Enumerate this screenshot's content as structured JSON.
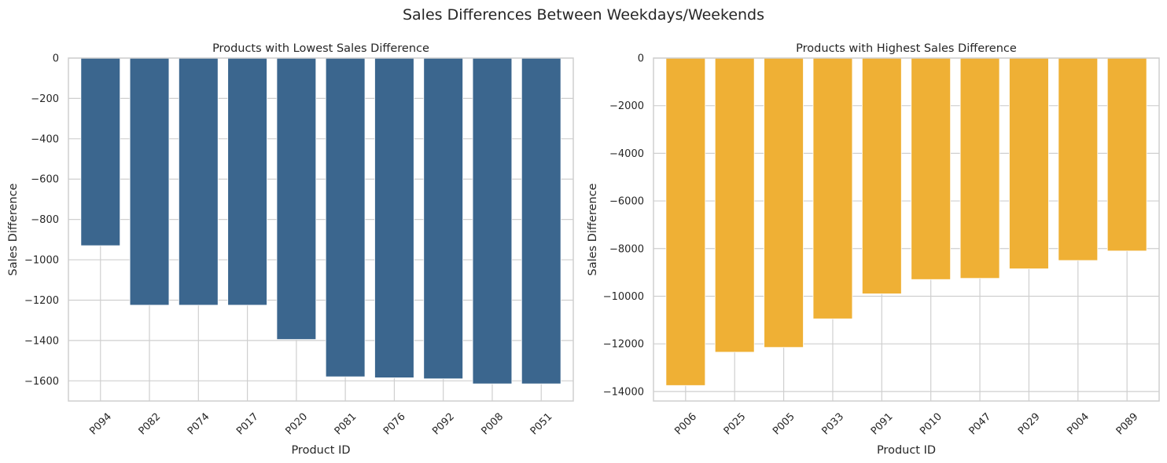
{
  "figure": {
    "title": "Sales Differences Between Weekdays/Weekends"
  },
  "chart_data": [
    {
      "type": "bar",
      "title": "Products with Lowest Sales Difference",
      "xlabel": "Product ID",
      "ylabel": "Sales Difference",
      "color": "#3b668e",
      "categories": [
        "P094",
        "P082",
        "P074",
        "P017",
        "P020",
        "P081",
        "P076",
        "P092",
        "P008",
        "P051"
      ],
      "values": [
        -930,
        -1225,
        -1225,
        -1225,
        -1395,
        -1580,
        -1585,
        -1590,
        -1615,
        -1615
      ],
      "ylim": [
        -1700,
        0
      ],
      "yticks": [
        0,
        -200,
        -400,
        -600,
        -800,
        -1000,
        -1200,
        -1400,
        -1600
      ],
      "ytick_labels": [
        "0",
        "−200",
        "−400",
        "−600",
        "−800",
        "−1000",
        "−1200",
        "−1400",
        "−1600"
      ],
      "grid": true
    },
    {
      "type": "bar",
      "title": "Products with Highest Sales Difference",
      "xlabel": "Product ID",
      "ylabel": "Sales Difference",
      "color": "#efb035",
      "categories": [
        "P006",
        "P025",
        "P005",
        "P033",
        "P091",
        "P010",
        "P047",
        "P029",
        "P004",
        "P089"
      ],
      "values": [
        -13750,
        -12350,
        -12150,
        -10950,
        -9900,
        -9300,
        -9250,
        -8850,
        -8500,
        -8100
      ],
      "ylim": [
        -14400,
        0
      ],
      "yticks": [
        0,
        -2000,
        -4000,
        -6000,
        -8000,
        -10000,
        -12000,
        -14000
      ],
      "ytick_labels": [
        "0",
        "−2000",
        "−4000",
        "−6000",
        "−8000",
        "−10000",
        "−12000",
        "−14000"
      ],
      "grid": true
    }
  ]
}
